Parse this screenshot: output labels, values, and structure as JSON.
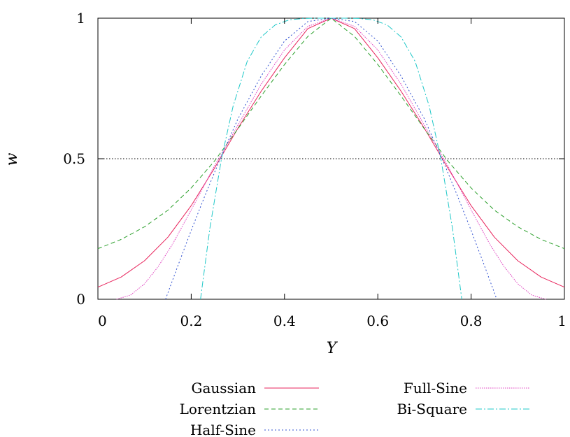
{
  "chart_data": {
    "type": "line",
    "title": "",
    "xlabel": "Y",
    "ylabel": "w",
    "xlim": [
      0,
      1
    ],
    "ylim": [
      0,
      1
    ],
    "xticks": [
      0,
      0.2,
      0.4,
      0.6,
      0.8,
      1
    ],
    "xtick_labels": [
      "0",
      "0.2",
      "0.4",
      "0.6",
      "0.8",
      "1"
    ],
    "yticks": [
      0,
      0.5,
      1
    ],
    "ytick_labels": [
      "0",
      "0.5",
      "1"
    ],
    "reference_line": {
      "y": 0.5,
      "style": "dotted",
      "color": "#000000"
    },
    "legend_position": "bottom",
    "series": [
      {
        "name": "Gaussian",
        "color": "#e8245c",
        "dash": "solid",
        "x": [
          0,
          0.05,
          0.1,
          0.15,
          0.2,
          0.25,
          0.3,
          0.35,
          0.4,
          0.45,
          0.5,
          0.55,
          0.6,
          0.65,
          0.7,
          0.75,
          0.8,
          0.85,
          0.9,
          0.95,
          1
        ],
        "y": [
          0.043,
          0.079,
          0.137,
          0.221,
          0.333,
          0.467,
          0.608,
          0.74,
          0.859,
          0.963,
          1.0,
          0.963,
          0.859,
          0.74,
          0.608,
          0.467,
          0.333,
          0.221,
          0.137,
          0.079,
          0.043
        ]
      },
      {
        "name": "Lorentzian",
        "color": "#2ca02c",
        "dash": "dashed",
        "x": [
          0,
          0.05,
          0.1,
          0.15,
          0.2,
          0.25,
          0.3,
          0.35,
          0.4,
          0.45,
          0.5,
          0.55,
          0.6,
          0.65,
          0.7,
          0.75,
          0.8,
          0.85,
          0.9,
          0.95,
          1
        ],
        "y": [
          0.18,
          0.213,
          0.258,
          0.317,
          0.396,
          0.492,
          0.606,
          0.723,
          0.835,
          0.935,
          1.0,
          0.935,
          0.835,
          0.723,
          0.606,
          0.492,
          0.396,
          0.317,
          0.258,
          0.213,
          0.18
        ]
      },
      {
        "name": "Half-Sine",
        "color": "#3050d0",
        "dash": "dotted",
        "x": [
          0.145,
          0.17,
          0.2,
          0.23,
          0.26,
          0.3,
          0.35,
          0.4,
          0.45,
          0.5,
          0.55,
          0.6,
          0.65,
          0.7,
          0.74,
          0.77,
          0.8,
          0.83,
          0.855
        ],
        "y": [
          0.0,
          0.113,
          0.245,
          0.371,
          0.491,
          0.641,
          0.794,
          0.919,
          0.988,
          1.0,
          0.988,
          0.919,
          0.794,
          0.641,
          0.491,
          0.371,
          0.245,
          0.113,
          0.0
        ]
      },
      {
        "name": "Full-Sine",
        "color": "#e040c0",
        "dash": "densedot",
        "x": [
          0.04,
          0.07,
          0.1,
          0.13,
          0.16,
          0.2,
          0.25,
          0.3,
          0.35,
          0.4,
          0.45,
          0.5,
          0.55,
          0.6,
          0.65,
          0.7,
          0.75,
          0.8,
          0.84,
          0.87,
          0.9,
          0.93,
          0.96
        ],
        "y": [
          0.0,
          0.015,
          0.055,
          0.118,
          0.196,
          0.318,
          0.475,
          0.619,
          0.765,
          0.887,
          0.971,
          1.0,
          0.971,
          0.887,
          0.765,
          0.619,
          0.475,
          0.318,
          0.196,
          0.118,
          0.055,
          0.015,
          0.0
        ]
      },
      {
        "name": "Bi-Square",
        "color": "#20c8c8",
        "dash": "dashdot",
        "x": [
          0.22,
          0.24,
          0.265,
          0.29,
          0.32,
          0.35,
          0.38,
          0.41,
          0.44,
          0.47,
          0.5,
          0.53,
          0.56,
          0.59,
          0.62,
          0.65,
          0.68,
          0.71,
          0.735,
          0.76,
          0.78
        ],
        "y": [
          0.0,
          0.253,
          0.502,
          0.688,
          0.846,
          0.933,
          0.976,
          0.994,
          0.999,
          1.0,
          1.0,
          1.0,
          0.999,
          0.994,
          0.976,
          0.933,
          0.846,
          0.688,
          0.502,
          0.253,
          0.0
        ]
      }
    ]
  }
}
